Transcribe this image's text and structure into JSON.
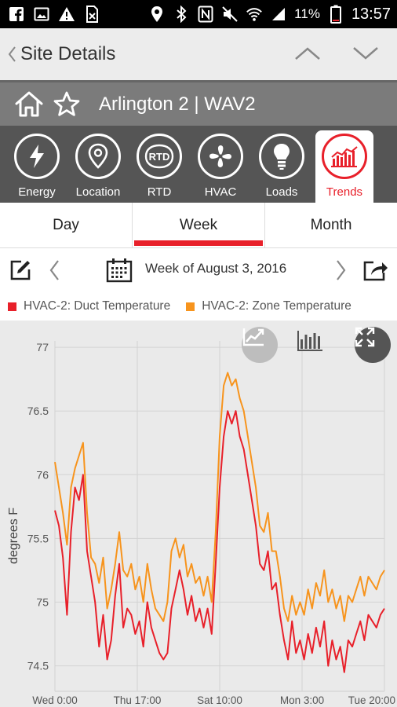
{
  "status_bar": {
    "battery": "11%",
    "time": "13:57",
    "left_icons": [
      "facebook-icon",
      "gallery-icon",
      "warning-icon",
      "no-sim-icon"
    ],
    "right_icons": [
      "location-icon",
      "bluetooth-icon",
      "nfc-icon",
      "mute-icon",
      "wifi-icon",
      "cell-signal-icon",
      "battery-icon"
    ]
  },
  "header": {
    "title": "Site Details"
  },
  "site": {
    "name": "Arlington 2 | WAV2"
  },
  "modules": [
    {
      "label": "Energy",
      "icon": "lightning-icon"
    },
    {
      "label": "Location",
      "icon": "map-pin-icon"
    },
    {
      "label": "RTD",
      "icon": "rtd-icon",
      "icon_text": "RTD"
    },
    {
      "label": "HVAC",
      "icon": "fan-icon"
    },
    {
      "label": "Loads",
      "icon": "lightbulb-icon"
    },
    {
      "label": "Trends",
      "icon": "trend-chart-icon",
      "active": true
    }
  ],
  "ranges": {
    "day": "Day",
    "week": "Week",
    "month": "Month",
    "selected": "Week"
  },
  "date_bar": {
    "label": "Week of August 3, 2016"
  },
  "legend": [
    {
      "name": "HVAC-2: Duct Temperature",
      "color": "#e8202a"
    },
    {
      "name": "HVAC-2: Zone Temperature",
      "color": "#f7941d"
    }
  ],
  "colors": {
    "accent": "#e8202a",
    "zone": "#f7941d",
    "chart_bg": "#eaeaea"
  },
  "chart_data": {
    "type": "line",
    "ylabel": "degrees F",
    "ylim": [
      74.3,
      77.05
    ],
    "yticks": [
      74.5,
      75,
      75.5,
      76,
      76.5,
      77
    ],
    "ytick_labels": [
      "74.5",
      "75",
      "75.5",
      "76",
      "76.5",
      "77"
    ],
    "xlim": [
      0,
      164
    ],
    "xticks": [
      0,
      41,
      82,
      123,
      164
    ],
    "xtick_labels": [
      "Wed 0:00",
      "Thu 17:00",
      "Sat 10:00",
      "Mon 3:00",
      "Tue 20:00"
    ],
    "grid": true,
    "series": [
      {
        "name": "HVAC-2: Duct Temperature",
        "color": "#e8202a",
        "x": [
          0,
          2,
          4,
          6,
          8,
          10,
          12,
          14,
          16,
          18,
          20,
          22,
          24,
          26,
          28,
          30,
          32,
          34,
          36,
          38,
          40,
          42,
          44,
          46,
          48,
          50,
          52,
          54,
          56,
          58,
          60,
          62,
          64,
          66,
          68,
          70,
          72,
          74,
          76,
          78,
          80,
          82,
          84,
          86,
          88,
          90,
          92,
          94,
          96,
          98,
          100,
          102,
          104,
          106,
          108,
          110,
          112,
          114,
          116,
          118,
          120,
          122,
          124,
          126,
          128,
          130,
          132,
          134,
          136,
          138,
          140,
          142,
          144,
          146,
          148,
          150,
          152,
          154,
          156,
          158,
          160,
          162,
          164
        ],
        "values": [
          75.72,
          75.6,
          75.35,
          74.9,
          75.55,
          75.9,
          75.8,
          76.0,
          75.4,
          75.2,
          75.0,
          74.65,
          74.9,
          74.55,
          74.7,
          75.05,
          75.3,
          74.8,
          74.95,
          74.9,
          74.75,
          74.85,
          74.65,
          75.0,
          74.8,
          74.7,
          74.6,
          74.55,
          74.6,
          74.95,
          75.1,
          75.25,
          75.1,
          74.9,
          75.05,
          74.85,
          74.95,
          74.8,
          74.95,
          74.75,
          75.3,
          75.9,
          76.3,
          76.5,
          76.4,
          76.5,
          76.3,
          76.2,
          76.0,
          75.8,
          75.6,
          75.3,
          75.25,
          75.4,
          75.1,
          75.15,
          74.9,
          74.7,
          74.55,
          74.85,
          74.6,
          74.7,
          74.55,
          74.75,
          74.6,
          74.8,
          74.65,
          74.85,
          74.5,
          74.7,
          74.55,
          74.65,
          74.45,
          74.7,
          74.65,
          74.75,
          74.85,
          74.7,
          74.9,
          74.85,
          74.8,
          74.9,
          74.95
        ]
      },
      {
        "name": "HVAC-2: Zone Temperature",
        "color": "#f7941d",
        "x": [
          0,
          2,
          4,
          6,
          8,
          10,
          12,
          14,
          16,
          18,
          20,
          22,
          24,
          26,
          28,
          30,
          32,
          34,
          36,
          38,
          40,
          42,
          44,
          46,
          48,
          50,
          52,
          54,
          56,
          58,
          60,
          62,
          64,
          66,
          68,
          70,
          72,
          74,
          76,
          78,
          80,
          82,
          84,
          86,
          88,
          90,
          92,
          94,
          96,
          98,
          100,
          102,
          104,
          106,
          108,
          110,
          112,
          114,
          116,
          118,
          120,
          122,
          124,
          126,
          128,
          130,
          132,
          134,
          136,
          138,
          140,
          142,
          144,
          146,
          148,
          150,
          152,
          154,
          156,
          158,
          160,
          162,
          164
        ],
        "values": [
          76.1,
          75.9,
          75.7,
          75.45,
          75.9,
          76.05,
          76.15,
          76.25,
          75.7,
          75.35,
          75.3,
          75.15,
          75.35,
          74.95,
          75.1,
          75.3,
          75.55,
          75.25,
          75.2,
          75.3,
          75.1,
          75.2,
          75.0,
          75.3,
          75.1,
          74.95,
          74.9,
          74.85,
          75.0,
          75.4,
          75.5,
          75.35,
          75.45,
          75.2,
          75.3,
          75.15,
          75.2,
          75.05,
          75.2,
          75.0,
          75.55,
          76.3,
          76.7,
          76.8,
          76.7,
          76.75,
          76.6,
          76.5,
          76.3,
          76.1,
          75.9,
          75.6,
          75.55,
          75.7,
          75.4,
          75.4,
          75.2,
          74.95,
          74.85,
          75.05,
          74.9,
          75.0,
          74.9,
          75.1,
          74.95,
          75.15,
          75.05,
          75.25,
          75.0,
          75.1,
          74.95,
          75.05,
          74.85,
          75.05,
          75.0,
          75.1,
          75.2,
          75.05,
          75.2,
          75.15,
          75.1,
          75.2,
          75.25
        ]
      }
    ]
  }
}
